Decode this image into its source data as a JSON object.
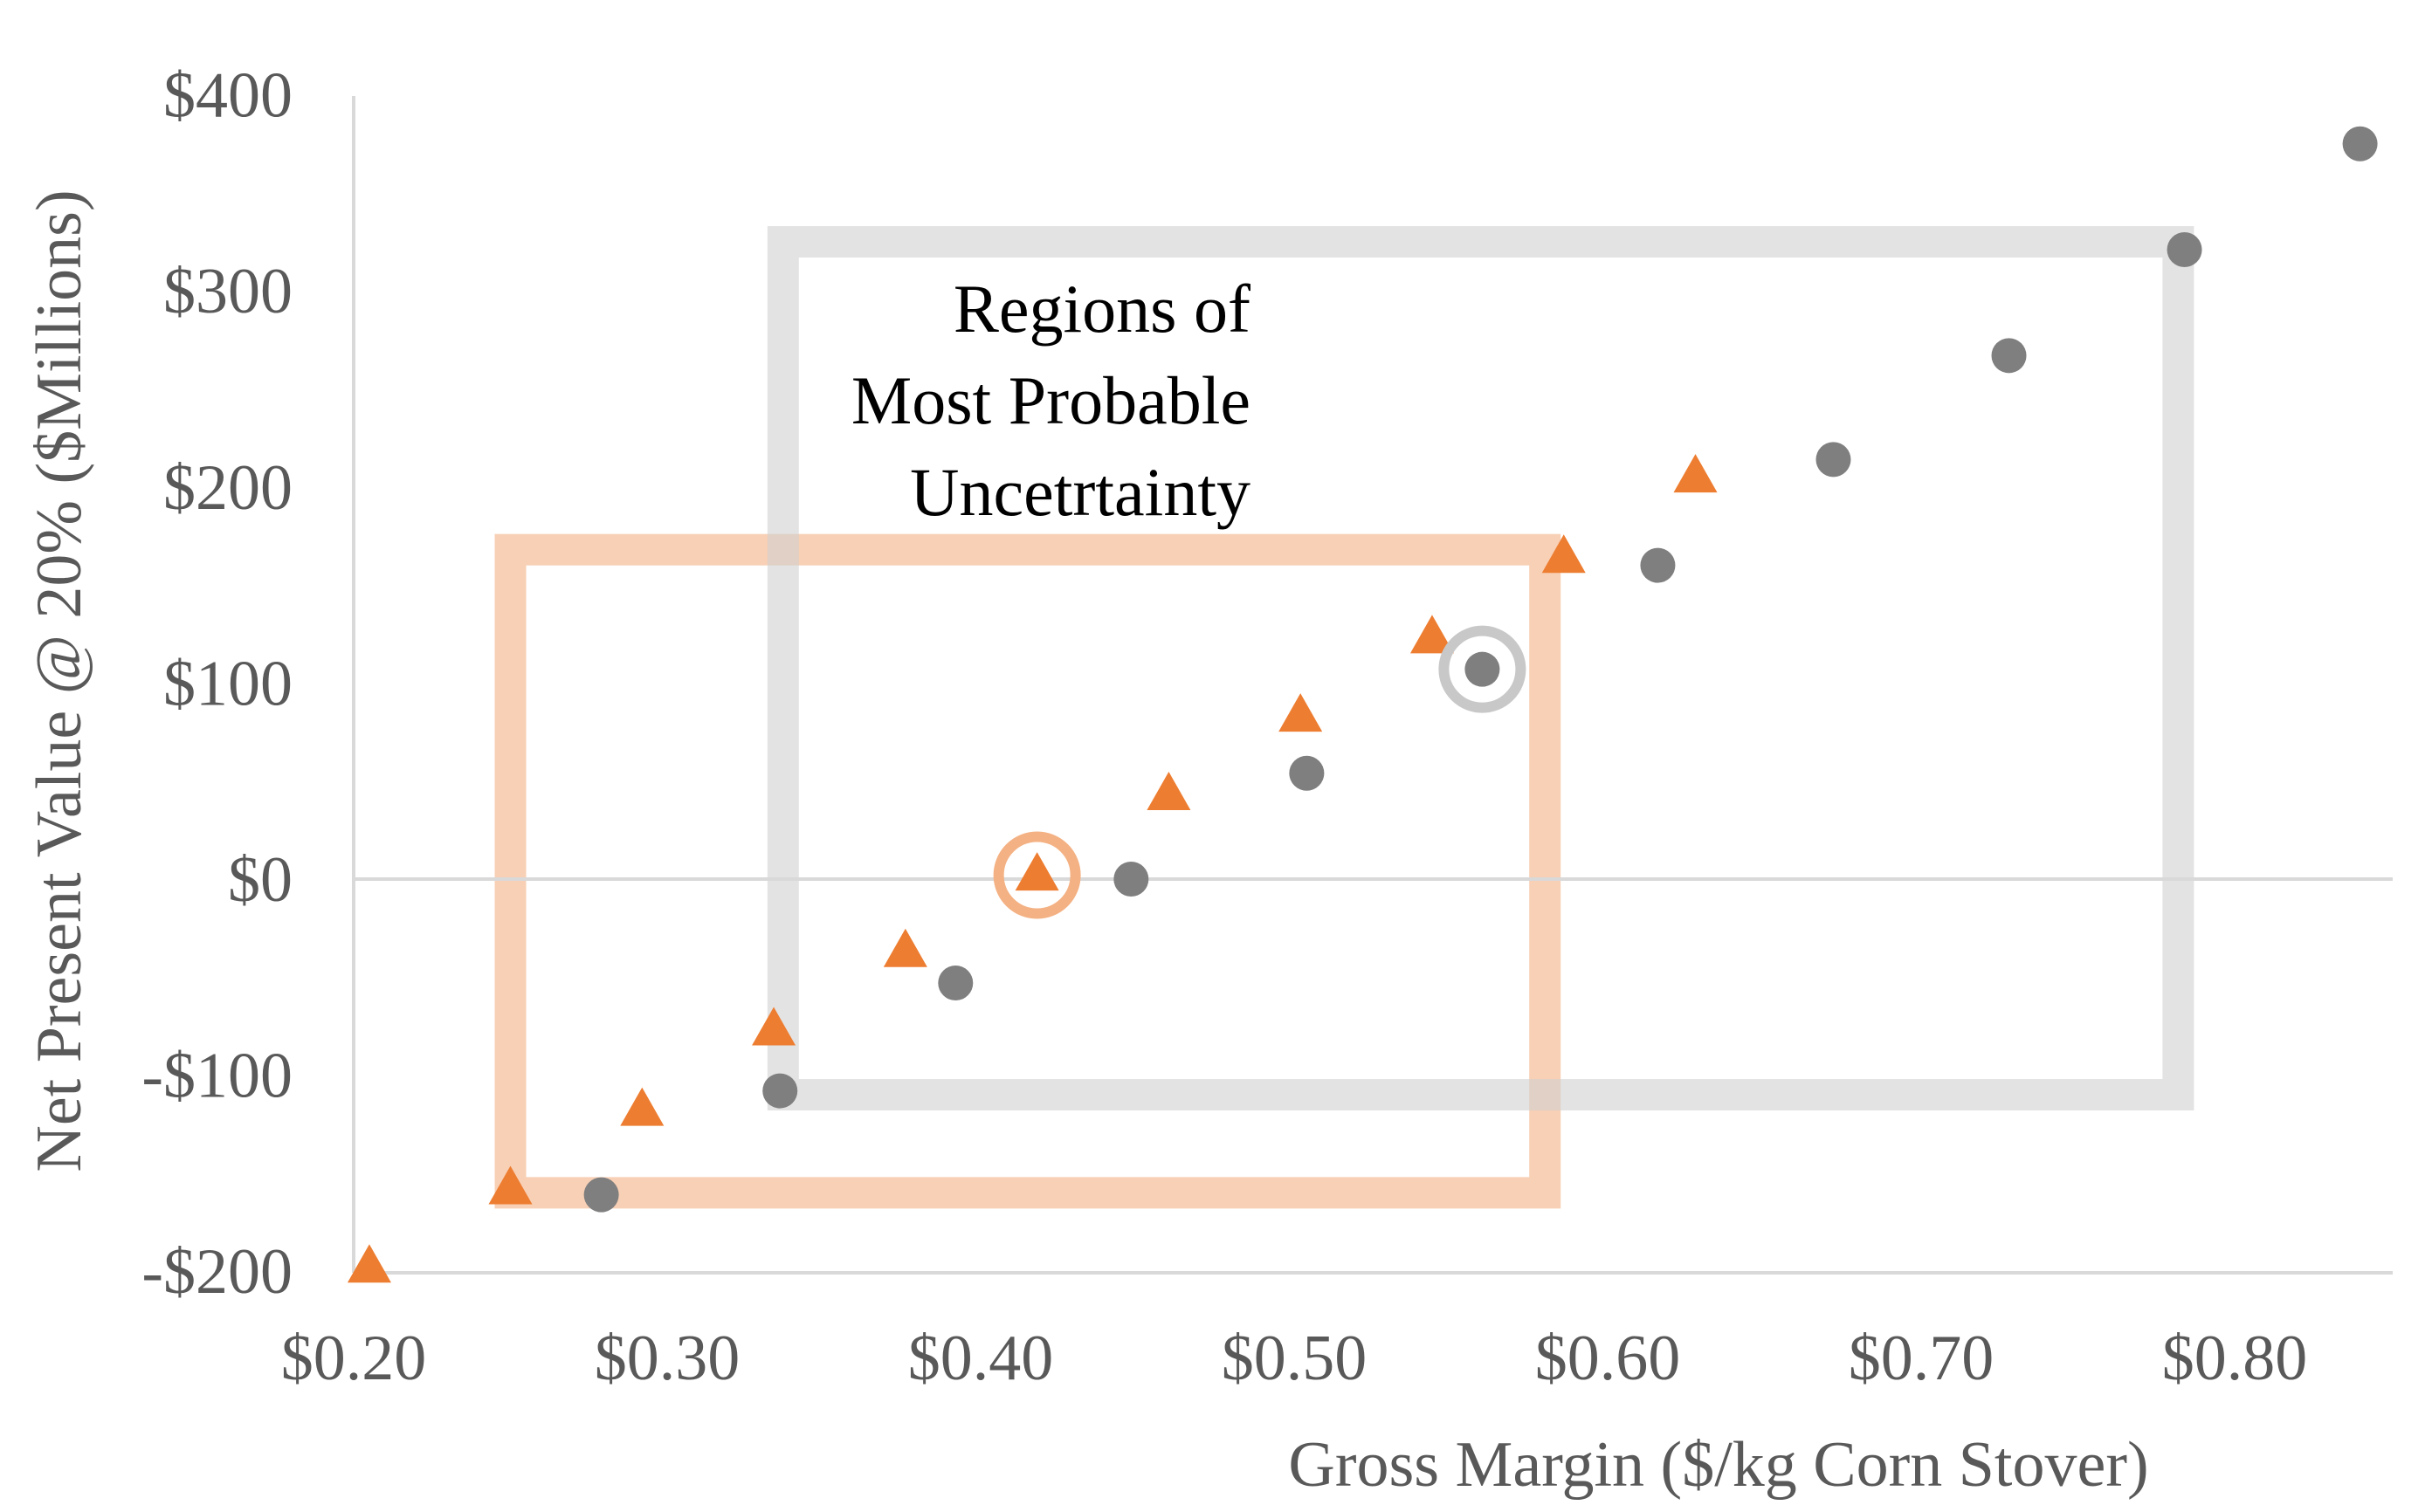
{
  "chart_data": {
    "type": "scatter",
    "title": "",
    "xlabel": "Gross Margin ($/kg Corn Stover)",
    "ylabel": "Net Present Value @ 20% ($Millions)",
    "xlim": [
      0.2,
      0.85
    ],
    "ylim": [
      -200,
      400
    ],
    "x_ticks": [
      0.2,
      0.3,
      0.4,
      0.5,
      0.6,
      0.7,
      0.8
    ],
    "x_tick_labels": [
      "$0.20",
      "$0.30",
      "$0.40",
      "$0.50",
      "$0.60",
      "$0.70",
      "$0.80"
    ],
    "y_ticks": [
      400,
      300,
      200,
      100,
      0,
      -100,
      -200
    ],
    "y_tick_labels": [
      "$400",
      "$300",
      "$200",
      "$100",
      "$0",
      "-$100",
      "-$200"
    ],
    "grid": false,
    "legend": "none",
    "zero_line": true,
    "series": [
      {
        "marker": "triangle",
        "color": "#ED7D31",
        "x": [
          0.205,
          0.25,
          0.292,
          0.334,
          0.376,
          0.418,
          0.46,
          0.502,
          0.544,
          0.586,
          0.628
        ],
        "y": [
          -198,
          -158,
          -118,
          -77,
          -37,
          2,
          43,
          83,
          123,
          164,
          205
        ]
      },
      {
        "marker": "circle",
        "color": "#7F7F7F",
        "x": [
          0.279,
          0.336,
          0.392,
          0.448,
          0.504,
          0.56,
          0.616,
          0.672,
          0.728,
          0.784,
          0.84
        ],
        "y": [
          -161,
          -108,
          -53,
          0,
          54,
          107,
          160,
          214,
          267,
          321,
          375
        ]
      }
    ],
    "regions": [
      {
        "color": "#F4B183",
        "opacity": 0.6,
        "x": [
          0.25,
          0.58
        ],
        "y": [
          -160,
          168
        ]
      },
      {
        "color": "#D0D0D0",
        "opacity": 0.6,
        "x": [
          0.337,
          0.782
        ],
        "y": [
          -110,
          325
        ]
      }
    ],
    "highlights": [
      {
        "color": "#F4B183",
        "x": 0.418,
        "y": 2
      },
      {
        "color": "#C8C8C8",
        "x": 0.56,
        "y": 107
      }
    ],
    "annotation": [
      "Regions of",
      "Most Probable",
      "Uncetrtainty"
    ]
  }
}
